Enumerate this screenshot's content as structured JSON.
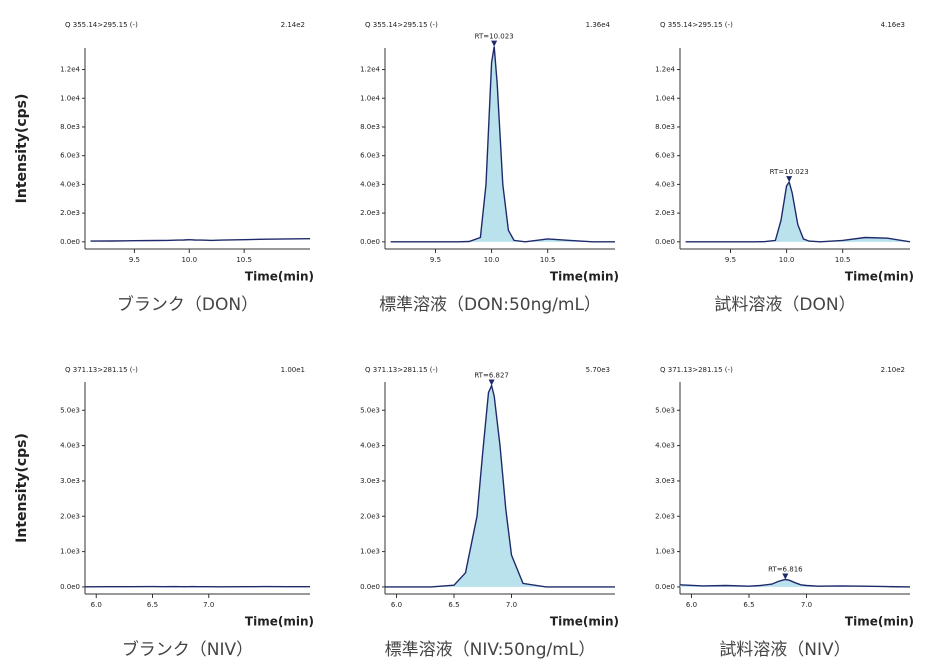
{
  "chart_data": [
    {
      "type": "line",
      "ylabel": "Intensity(cps)",
      "header": "Q 355.14>295.15 (-)",
      "scale_label": "2.14e2",
      "xlabel": "Time(min)",
      "caption": "ブランク（DON）",
      "x": [
        9.1,
        9.3,
        9.5,
        9.7,
        9.8,
        9.9,
        9.95,
        10.0,
        10.023,
        10.05,
        10.1,
        10.15,
        10.2,
        10.3,
        10.5,
        10.7,
        10.9,
        11.1
      ],
      "series": [
        {
          "color": "#1f2a6b",
          "values": [
            50,
            60,
            80,
            90,
            100,
            120,
            130,
            150,
            140,
            130,
            120,
            110,
            100,
            120,
            150,
            180,
            200,
            214
          ]
        }
      ],
      "xlim": [
        9.05,
        11.1
      ],
      "ylim": [
        -500,
        13500
      ],
      "xticks": [
        9.5,
        {
          "value": 10,
          "label": "10.0"
        },
        10.5
      ],
      "yticks": [
        {
          "value": 0,
          "label": "0.0e0"
        },
        {
          "value": 2000,
          "label": "2.0e3"
        },
        {
          "value": 4000,
          "label": "4.0e3"
        },
        {
          "value": 6000,
          "label": "6.0e3"
        },
        {
          "value": 8000,
          "label": "8.0e3"
        },
        {
          "value": 10000,
          "label": "1.0e4"
        },
        {
          "value": 12000,
          "label": "1.2e4"
        }
      ]
    },
    {
      "type": "line",
      "header": "Q 355.14>295.15 (-)",
      "scale_label": "1.36e4",
      "xlabel": "Time(min)",
      "caption": "標準溶液（DON:50ng/mL）",
      "x": [
        9.1,
        9.3,
        9.5,
        9.7,
        9.8,
        9.9,
        9.95,
        10.0,
        10.023,
        10.05,
        10.1,
        10.15,
        10.2,
        10.3,
        10.5,
        10.7,
        10.9,
        11.1
      ],
      "series": [
        {
          "color": "#1f2a6b",
          "fill": "#b9e2ed",
          "values": [
            0,
            0,
            0,
            0,
            20,
            300,
            4000,
            12500,
            13600,
            11000,
            4000,
            800,
            100,
            0,
            200,
            100,
            0,
            0
          ]
        }
      ],
      "annotation": {
        "label": "RT=10.023",
        "x": 10.023,
        "y": 13600
      },
      "xlim": [
        9.05,
        11.1
      ],
      "ylim": [
        -500,
        13500
      ],
      "xticks": [
        9.5,
        {
          "value": 10,
          "label": "10.0"
        },
        10.5
      ],
      "yticks": [
        {
          "value": 0,
          "label": "0.0e0"
        },
        {
          "value": 2000,
          "label": "2.0e3"
        },
        {
          "value": 4000,
          "label": "4.0e3"
        },
        {
          "value": 6000,
          "label": "6.0e3"
        },
        {
          "value": 8000,
          "label": "8.0e3"
        },
        {
          "value": 10000,
          "label": "1.0e4"
        },
        {
          "value": 12000,
          "label": "1.2e4"
        }
      ]
    },
    {
      "type": "line",
      "header": "Q 355.14>295.15 (-)",
      "scale_label": "4.16e3",
      "xlabel": "Time(min)",
      "caption": "試料溶液（DON）",
      "x": [
        9.1,
        9.3,
        9.5,
        9.7,
        9.8,
        9.9,
        9.95,
        10.0,
        10.023,
        10.05,
        10.1,
        10.15,
        10.2,
        10.3,
        10.5,
        10.7,
        10.9,
        11.1
      ],
      "series": [
        {
          "color": "#1f2a6b",
          "fill": "#b9e2ed",
          "values": [
            0,
            0,
            0,
            0,
            10,
            100,
            1500,
            3900,
            4160,
            3400,
            1200,
            200,
            50,
            0,
            100,
            300,
            250,
            0
          ]
        }
      ],
      "annotation": {
        "label": "RT=10.023",
        "x": 10.023,
        "y": 4160
      },
      "xlim": [
        9.05,
        11.1
      ],
      "ylim": [
        -500,
        13500
      ],
      "xticks": [
        9.5,
        {
          "value": 10,
          "label": "10.0"
        },
        10.5
      ],
      "yticks": [
        {
          "value": 0,
          "label": "0.0e0"
        },
        {
          "value": 2000,
          "label": "2.0e3"
        },
        {
          "value": 4000,
          "label": "4.0e3"
        },
        {
          "value": 6000,
          "label": "6.0e3"
        },
        {
          "value": 8000,
          "label": "8.0e3"
        },
        {
          "value": 10000,
          "label": "1.0e4"
        },
        {
          "value": 12000,
          "label": "1.2e4"
        }
      ]
    },
    {
      "type": "line",
      "ylabel": "Intensity(cps)",
      "header": "Q 371.13>281.15 (-)",
      "scale_label": "1.00e1",
      "xlabel": "Time(min)",
      "caption": "ブランク（NIV）",
      "x": [
        5.9,
        6.1,
        6.3,
        6.5,
        6.6,
        6.7,
        6.75,
        6.8,
        6.827,
        6.85,
        6.9,
        6.95,
        7.0,
        7.1,
        7.3,
        7.5,
        7.7,
        7.9
      ],
      "series": [
        {
          "color": "#1f2a6b",
          "values": [
            5,
            8,
            6,
            10,
            7,
            9,
            6,
            8,
            7,
            9,
            8,
            6,
            7,
            5,
            8,
            9,
            6,
            7
          ]
        }
      ],
      "xlim": [
        5.9,
        7.9
      ],
      "ylim": [
        -200,
        5800
      ],
      "xticks": [
        {
          "value": 6,
          "label": "6.0"
        },
        6.5,
        {
          "value": 7,
          "label": "7.0"
        }
      ],
      "yticks": [
        {
          "value": 0,
          "label": "0.0e0"
        },
        {
          "value": 1000,
          "label": "1.0e3"
        },
        {
          "value": 2000,
          "label": "2.0e3"
        },
        {
          "value": 3000,
          "label": "3.0e3"
        },
        {
          "value": 4000,
          "label": "4.0e3"
        },
        {
          "value": 5000,
          "label": "5.0e3"
        }
      ]
    },
    {
      "type": "line",
      "header": "Q 371.13>281.15 (-)",
      "scale_label": "5.70e3",
      "xlabel": "Time(min)",
      "caption": "標準溶液（NIV:50ng/mL）",
      "x": [
        5.9,
        6.1,
        6.3,
        6.5,
        6.6,
        6.7,
        6.75,
        6.8,
        6.827,
        6.85,
        6.9,
        6.95,
        7.0,
        7.1,
        7.3,
        7.5,
        7.7,
        7.9
      ],
      "series": [
        {
          "color": "#1f2a6b",
          "fill": "#b9e2ed",
          "values": [
            0,
            0,
            0,
            50,
            400,
            2000,
            3800,
            5500,
            5700,
            5400,
            4000,
            2200,
            900,
            100,
            0,
            0,
            0,
            0
          ]
        }
      ],
      "annotation": {
        "label": "RT=6.827",
        "x": 6.827,
        "y": 5700
      },
      "xlim": [
        5.9,
        7.9
      ],
      "ylim": [
        -200,
        5800
      ],
      "xticks": [
        {
          "value": 6,
          "label": "6.0"
        },
        6.5,
        {
          "value": 7,
          "label": "7.0"
        }
      ],
      "yticks": [
        {
          "value": 0,
          "label": "0.0e0"
        },
        {
          "value": 1000,
          "label": "1.0e3"
        },
        {
          "value": 2000,
          "label": "2.0e3"
        },
        {
          "value": 3000,
          "label": "3.0e3"
        },
        {
          "value": 4000,
          "label": "4.0e3"
        },
        {
          "value": 5000,
          "label": "5.0e3"
        }
      ]
    },
    {
      "type": "line",
      "header": "Q 371.13>281.15 (-)",
      "scale_label": "2.10e2",
      "xlabel": "Time(min)",
      "caption": "試料溶液（NIV）",
      "x": [
        5.9,
        6.1,
        6.3,
        6.5,
        6.6,
        6.7,
        6.75,
        6.8,
        6.816,
        6.85,
        6.9,
        6.95,
        7.0,
        7.1,
        7.3,
        7.5,
        7.7,
        7.9
      ],
      "series": [
        {
          "color": "#1f2a6b",
          "fill": "#b9e2ed",
          "values": [
            60,
            30,
            40,
            20,
            40,
            80,
            150,
            200,
            210,
            190,
            120,
            60,
            40,
            20,
            30,
            20,
            10,
            0
          ]
        }
      ],
      "annotation": {
        "label": "RT=6.816",
        "x": 6.816,
        "y": 210
      },
      "xlim": [
        5.9,
        7.9
      ],
      "ylim": [
        -200,
        5800
      ],
      "xticks": [
        {
          "value": 6,
          "label": "6.0"
        },
        6.5,
        {
          "value": 7,
          "label": "7.0"
        }
      ],
      "yticks": [
        {
          "value": 0,
          "label": "0.0e0"
        },
        {
          "value": 1000,
          "label": "1.0e3"
        },
        {
          "value": 2000,
          "label": "2.0e3"
        },
        {
          "value": 3000,
          "label": "3.0e3"
        },
        {
          "value": 4000,
          "label": "4.0e3"
        },
        {
          "value": 5000,
          "label": "5.0e3"
        }
      ]
    }
  ]
}
